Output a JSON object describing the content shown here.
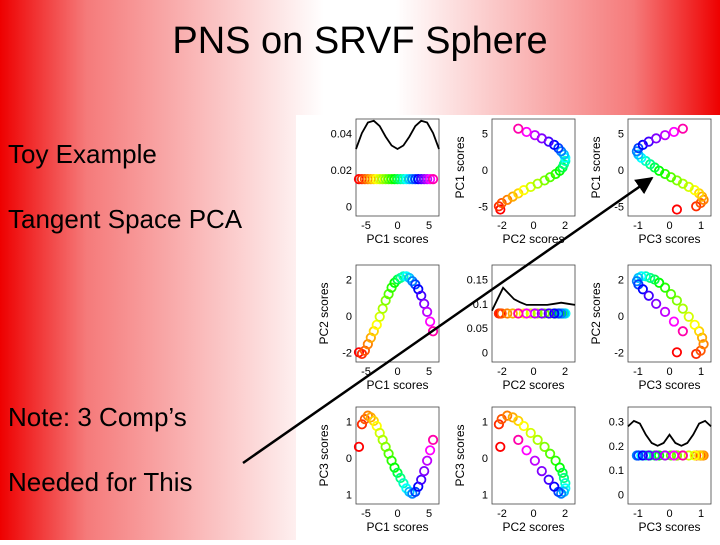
{
  "slide": {
    "title": "PNS on SRVF Sphere",
    "bullets": [
      "Toy Example",
      "Tangent Space PCA",
      "Note:  3 Comp’s",
      "Needed for This"
    ]
  },
  "colors": {
    "background_edge": "#ee0000",
    "background_center": "#ffffff",
    "arrow": "#000000"
  },
  "chart_data": {
    "type": "scatter",
    "layout": "3x3 scatterplot matrix",
    "variables": [
      "PC1 scores",
      "PC2 scores",
      "PC3 scores"
    ],
    "panels": [
      {
        "row": 1,
        "col": 1,
        "kind": "density",
        "xlabel": "PC1 scores",
        "xticks": [
          "-5",
          "0",
          "5"
        ],
        "yticks": [
          "0.04",
          "0.02",
          "0"
        ],
        "xlim": [
          -7,
          7
        ],
        "ylim": [
          0,
          0.055
        ],
        "curve": [
          [
            -7,
            0.038
          ],
          [
            -6,
            0.047
          ],
          [
            -5,
            0.053
          ],
          [
            -4,
            0.054
          ],
          [
            -3,
            0.051
          ],
          [
            -2,
            0.045
          ],
          [
            -1,
            0.04
          ],
          [
            0,
            0.038
          ],
          [
            1,
            0.04
          ],
          [
            2,
            0.045
          ],
          [
            3,
            0.051
          ],
          [
            4,
            0.054
          ],
          [
            5,
            0.053
          ],
          [
            6,
            0.047
          ],
          [
            7,
            0.038
          ]
        ]
      },
      {
        "row": 1,
        "col": 2,
        "kind": "scatter",
        "xvar": "PC2 scores",
        "yvar": "PC1 scores",
        "xlabel": "PC2 scores",
        "ylabel": "PC1 scores",
        "xticks": [
          "-2",
          "0",
          "2"
        ],
        "yticks": [
          "5",
          "0",
          "-5"
        ],
        "xlim": [
          -3,
          3
        ],
        "ylim": [
          -7.5,
          7.5
        ]
      },
      {
        "row": 1,
        "col": 3,
        "kind": "scatter",
        "xvar": "PC3 scores",
        "yvar": "PC1 scores",
        "xlabel": "PC3 scores",
        "ylabel": "PC1 scores",
        "xticks": [
          "-1",
          "0",
          "1"
        ],
        "yticks": [
          "5",
          "0",
          "-5"
        ],
        "xlim": [
          -1.4,
          1.4
        ],
        "ylim": [
          -7.5,
          7.5
        ]
      },
      {
        "row": 2,
        "col": 1,
        "kind": "scatter",
        "xvar": "PC1 scores",
        "yvar": "PC2 scores",
        "xlabel": "PC1 scores",
        "ylabel": "PC2 scores",
        "xticks": [
          "-5",
          "0",
          "5"
        ],
        "yticks": [
          "2",
          "0",
          "-2"
        ],
        "xlim": [
          -7,
          7
        ],
        "ylim": [
          -3,
          3
        ]
      },
      {
        "row": 2,
        "col": 2,
        "kind": "density",
        "xlabel": "PC2 scores",
        "xticks": [
          "-2",
          "0",
          "2"
        ],
        "yticks": [
          "0.15",
          "0.1",
          "0.05",
          "0"
        ],
        "xlim": [
          -3,
          3
        ],
        "ylim": [
          0,
          0.17
        ],
        "curve": [
          [
            -3,
            0.09
          ],
          [
            -2.6,
            0.11
          ],
          [
            -2.2,
            0.13
          ],
          [
            -1.8,
            0.12
          ],
          [
            -1.4,
            0.11
          ],
          [
            -1,
            0.105
          ],
          [
            -0.5,
            0.1
          ],
          [
            0,
            0.1
          ],
          [
            0.5,
            0.1
          ],
          [
            1,
            0.1
          ],
          [
            1.5,
            0.102
          ],
          [
            2,
            0.104
          ],
          [
            2.5,
            0.102
          ],
          [
            3,
            0.1
          ]
        ]
      },
      {
        "row": 2,
        "col": 3,
        "kind": "scatter",
        "xvar": "PC3 scores",
        "yvar": "PC2 scores",
        "xlabel": "PC3 scores",
        "ylabel": "PC2 scores",
        "xticks": [
          "-1",
          "0",
          "1"
        ],
        "yticks": [
          "2",
          "0",
          "-2"
        ],
        "xlim": [
          -1.4,
          1.4
        ],
        "ylim": [
          -3,
          3
        ]
      },
      {
        "row": 3,
        "col": 1,
        "kind": "scatter",
        "xvar": "PC1 scores",
        "yvar": "PC3 scores",
        "xlabel": "PC1 scores",
        "ylabel": "PC3 scores",
        "xticks": [
          "-5",
          "0",
          "5"
        ],
        "yticks": [
          "1",
          "0",
          "1"
        ],
        "xlim": [
          -7,
          7
        ],
        "ylim": [
          -1.4,
          1.4
        ]
      },
      {
        "row": 3,
        "col": 2,
        "kind": "scatter",
        "xvar": "PC2 scores",
        "yvar": "PC3 scores",
        "xlabel": "PC2 scores",
        "ylabel": "PC3 scores",
        "xticks": [
          "-2",
          "0",
          "2"
        ],
        "yticks": [
          "1",
          "0",
          "1"
        ],
        "xlim": [
          -3,
          3
        ],
        "ylim": [
          -1.4,
          1.4
        ]
      },
      {
        "row": 3,
        "col": 3,
        "kind": "density",
        "xlabel": "PC3 scores",
        "xticks": [
          "-1",
          "0",
          "1"
        ],
        "yticks": [
          "0.3",
          "0.2",
          "0.1",
          "0"
        ],
        "xlim": [
          -1.4,
          1.4
        ],
        "ylim": [
          0,
          0.35
        ],
        "curve": [
          [
            -1.4,
            0.28
          ],
          [
            -1.2,
            0.3
          ],
          [
            -1,
            0.29
          ],
          [
            -0.8,
            0.25
          ],
          [
            -0.6,
            0.22
          ],
          [
            -0.4,
            0.21
          ],
          [
            -0.2,
            0.22
          ],
          [
            0,
            0.25
          ],
          [
            0.2,
            0.22
          ],
          [
            0.4,
            0.21
          ],
          [
            0.6,
            0.22
          ],
          [
            0.8,
            0.25
          ],
          [
            1,
            0.29
          ],
          [
            1.2,
            0.3
          ],
          [
            1.4,
            0.28
          ]
        ]
      }
    ],
    "points": [
      {
        "pc1": -6.5,
        "pc2": -2.4,
        "pc3": 0.25,
        "color": "#ff0000"
      },
      {
        "pc1": -6.0,
        "pc2": -2.5,
        "pc3": 0.9,
        "color": "#ff2a00"
      },
      {
        "pc1": -5.5,
        "pc2": -2.3,
        "pc3": 1.05,
        "color": "#ff5500"
      },
      {
        "pc1": -5.0,
        "pc2": -1.9,
        "pc3": 1.15,
        "color": "#ff8000"
      },
      {
        "pc1": -4.5,
        "pc2": -1.5,
        "pc3": 1.1,
        "color": "#ffaa00"
      },
      {
        "pc1": -4.0,
        "pc2": -1.1,
        "pc3": 1.0,
        "color": "#ffd400"
      },
      {
        "pc1": -3.5,
        "pc2": -0.7,
        "pc3": 0.85,
        "color": "#ffff00"
      },
      {
        "pc1": -3.0,
        "pc2": -0.2,
        "pc3": 0.65,
        "color": "#d4ff00"
      },
      {
        "pc1": -2.5,
        "pc2": 0.3,
        "pc3": 0.45,
        "color": "#aaff00"
      },
      {
        "pc1": -2.0,
        "pc2": 0.8,
        "pc3": 0.25,
        "color": "#80ff00"
      },
      {
        "pc1": -1.5,
        "pc2": 1.2,
        "pc3": 0.05,
        "color": "#55ff00"
      },
      {
        "pc1": -1.0,
        "pc2": 1.6,
        "pc3": -0.15,
        "color": "#2aff00"
      },
      {
        "pc1": -0.5,
        "pc2": 1.9,
        "pc3": -0.35,
        "color": "#00ff00"
      },
      {
        "pc1": 0.0,
        "pc2": 2.1,
        "pc3": -0.5,
        "color": "#00ff40"
      },
      {
        "pc1": 0.5,
        "pc2": 2.2,
        "pc3": -0.65,
        "color": "#00ff80"
      },
      {
        "pc1": 1.0,
        "pc2": 2.3,
        "pc3": -0.8,
        "color": "#00ffbf"
      },
      {
        "pc1": 1.5,
        "pc2": 2.3,
        "pc3": -0.95,
        "color": "#00ffff"
      },
      {
        "pc1": 2.0,
        "pc2": 2.2,
        "pc3": -1.05,
        "color": "#00bfff"
      },
      {
        "pc1": 2.5,
        "pc2": 2.0,
        "pc3": -1.1,
        "color": "#0080ff"
      },
      {
        "pc1": 3.0,
        "pc2": 1.8,
        "pc3": -1.05,
        "color": "#0040ff"
      },
      {
        "pc1": 3.5,
        "pc2": 1.5,
        "pc3": -0.9,
        "color": "#0000ff"
      },
      {
        "pc1": 4.0,
        "pc2": 1.1,
        "pc3": -0.7,
        "color": "#4000ff"
      },
      {
        "pc1": 4.5,
        "pc2": 0.6,
        "pc3": -0.45,
        "color": "#8000ff"
      },
      {
        "pc1": 5.0,
        "pc2": 0.1,
        "pc3": -0.15,
        "color": "#bf00ff"
      },
      {
        "pc1": 5.5,
        "pc2": -0.5,
        "pc3": 0.15,
        "color": "#ff00ff"
      },
      {
        "pc1": 6.0,
        "pc2": -1.1,
        "pc3": 0.45,
        "color": "#ff00aa"
      }
    ]
  }
}
